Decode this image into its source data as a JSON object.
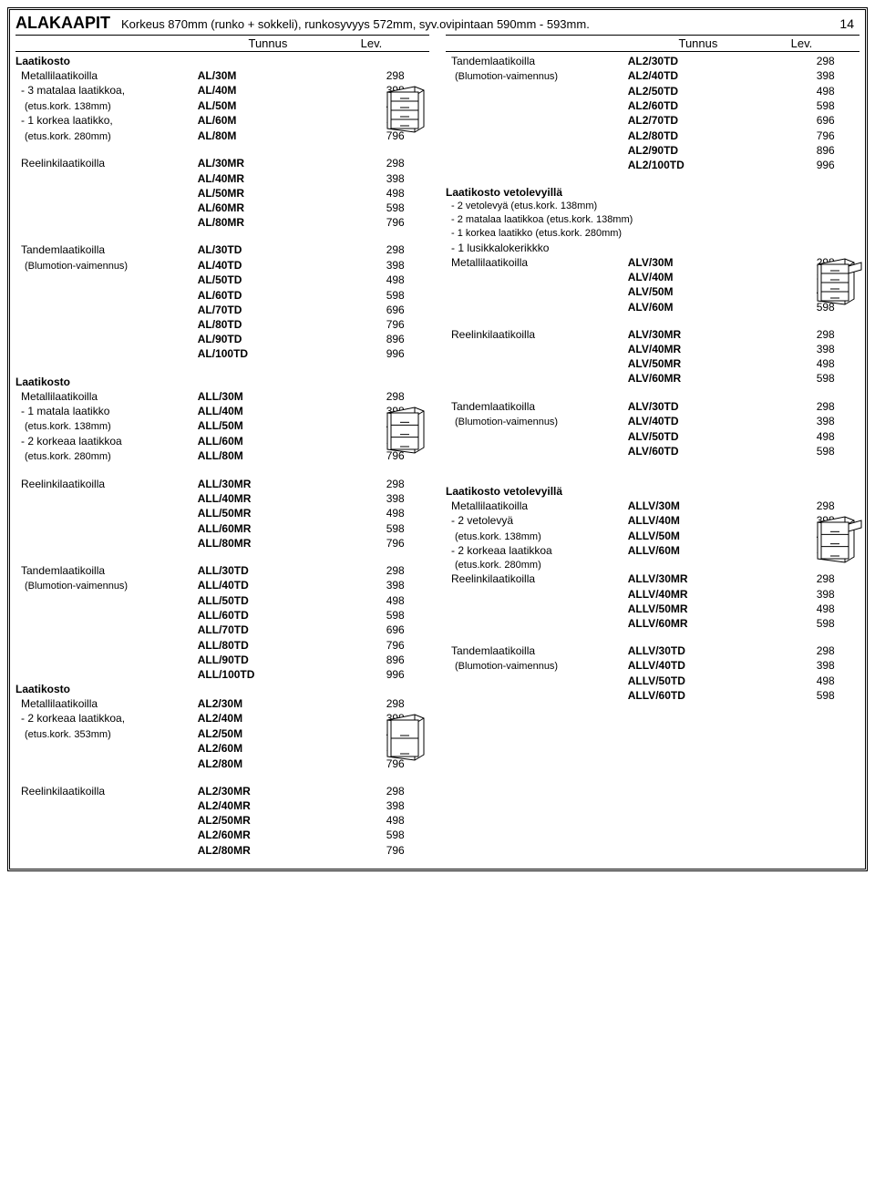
{
  "header": {
    "title": "ALAKAAPIT",
    "subtitle": "Korkeus 870mm (runko + sokkeli), runkosyvyys 572mm, syv.ovipintaan 590mm - 593mm.",
    "page": "14",
    "col_tunnus": "Tunnus",
    "col_lev": "Lev."
  },
  "left_rows": [
    {
      "d": "Laatikosto",
      "c": "",
      "v": "",
      "b": true
    },
    {
      "d": " Metallilaatikoilla",
      "c": "AL/30M",
      "v": "298",
      "i": 1
    },
    {
      "d": " - 3 matalaa laatikkoa,",
      "c": "AL/40M",
      "v": "398",
      "i": 1
    },
    {
      "d": "  (etus.kork. 138mm)",
      "c": "AL/50M",
      "v": "498",
      "i": 2,
      "s": true
    },
    {
      "d": " - 1 korkea laatikko,",
      "c": "AL/60M",
      "v": "598",
      "i": 1
    },
    {
      "d": "  (etus.kork. 280mm)",
      "c": "AL/80M",
      "v": "796",
      "i": 2,
      "s": true
    },
    {
      "d": "",
      "c": "",
      "v": ""
    },
    {
      "d": " Reelinkilaatikoilla",
      "c": "AL/30MR",
      "v": "298",
      "i": 1
    },
    {
      "d": "",
      "c": "AL/40MR",
      "v": "398"
    },
    {
      "d": "",
      "c": "AL/50MR",
      "v": "498"
    },
    {
      "d": "",
      "c": "AL/60MR",
      "v": "598"
    },
    {
      "d": "",
      "c": "AL/80MR",
      "v": "796"
    },
    {
      "d": "",
      "c": "",
      "v": ""
    },
    {
      "d": " Tandemlaatikoilla",
      "c": "AL/30TD",
      "v": "298",
      "i": 1
    },
    {
      "d": "  (Blumotion-vaimennus)",
      "c": "AL/40TD",
      "v": "398",
      "i": 2,
      "s": true
    },
    {
      "d": "",
      "c": "AL/50TD",
      "v": "498"
    },
    {
      "d": "",
      "c": "AL/60TD",
      "v": "598"
    },
    {
      "d": "",
      "c": "AL/70TD",
      "v": "696"
    },
    {
      "d": "",
      "c": "AL/80TD",
      "v": "796"
    },
    {
      "d": "",
      "c": "AL/90TD",
      "v": "896"
    },
    {
      "d": "",
      "c": "AL/100TD",
      "v": "996"
    },
    {
      "d": "",
      "c": "",
      "v": ""
    },
    {
      "d": "Laatikosto",
      "c": "",
      "v": "",
      "b": true
    },
    {
      "d": " Metallilaatikoilla",
      "c": "ALL/30M",
      "v": "298",
      "i": 1
    },
    {
      "d": " - 1 matala laatikko",
      "c": "ALL/40M",
      "v": "398",
      "i": 1
    },
    {
      "d": "  (etus.kork. 138mm)",
      "c": "ALL/50M",
      "v": "498",
      "i": 2,
      "s": true
    },
    {
      "d": " - 2 korkeaa laatikkoa",
      "c": "ALL/60M",
      "v": "598",
      "i": 1
    },
    {
      "d": "  (etus.kork. 280mm)",
      "c": "ALL/80M",
      "v": "796",
      "i": 2,
      "s": true
    },
    {
      "d": "",
      "c": "",
      "v": ""
    },
    {
      "d": " Reelinkilaatikoilla",
      "c": "ALL/30MR",
      "v": "298",
      "i": 1
    },
    {
      "d": "",
      "c": "ALL/40MR",
      "v": "398"
    },
    {
      "d": "",
      "c": "ALL/50MR",
      "v": "498"
    },
    {
      "d": "",
      "c": "ALL/60MR",
      "v": "598"
    },
    {
      "d": "",
      "c": "ALL/80MR",
      "v": "796"
    },
    {
      "d": "",
      "c": "",
      "v": ""
    },
    {
      "d": " Tandemlaatikoilla",
      "c": "ALL/30TD",
      "v": "298",
      "i": 1
    },
    {
      "d": "  (Blumotion-vaimennus)",
      "c": "ALL/40TD",
      "v": "398",
      "i": 2,
      "s": true
    },
    {
      "d": "",
      "c": "ALL/50TD",
      "v": "498"
    },
    {
      "d": "",
      "c": "ALL/60TD",
      "v": "598"
    },
    {
      "d": "",
      "c": "ALL/70TD",
      "v": "696"
    },
    {
      "d": "",
      "c": "ALL/80TD",
      "v": "796"
    },
    {
      "d": "",
      "c": "ALL/90TD",
      "v": "896"
    },
    {
      "d": "",
      "c": "ALL/100TD",
      "v": "996"
    },
    {
      "d": "Laatikosto",
      "c": "",
      "v": "",
      "b": true
    },
    {
      "d": " Metallilaatikoilla",
      "c": "AL2/30M",
      "v": "298",
      "i": 1
    },
    {
      "d": " - 2 korkeaa laatikkoa,",
      "c": "AL2/40M",
      "v": "398",
      "i": 1
    },
    {
      "d": "  (etus.kork. 353mm)",
      "c": "AL2/50M",
      "v": "498",
      "i": 2,
      "s": true
    },
    {
      "d": "",
      "c": "AL2/60M",
      "v": "598"
    },
    {
      "d": "",
      "c": "AL2/80M",
      "v": "796"
    },
    {
      "d": "",
      "c": "",
      "v": ""
    },
    {
      "d": " Reelinkilaatikoilla",
      "c": "AL2/30MR",
      "v": "298",
      "i": 1
    },
    {
      "d": "",
      "c": "AL2/40MR",
      "v": "398"
    },
    {
      "d": "",
      "c": "AL2/50MR",
      "v": "498"
    },
    {
      "d": "",
      "c": "AL2/60MR",
      "v": "598"
    },
    {
      "d": "",
      "c": "AL2/80MR",
      "v": "796"
    }
  ],
  "right_rows": [
    {
      "d": " Tandemlaatikoilla",
      "c": "AL2/30TD",
      "v": "298",
      "i": 1
    },
    {
      "d": "  (Blumotion-vaimennus)",
      "c": "AL2/40TD",
      "v": "398",
      "i": 2,
      "s": true
    },
    {
      "d": "",
      "c": "AL2/50TD",
      "v": "498"
    },
    {
      "d": "",
      "c": "AL2/60TD",
      "v": "598"
    },
    {
      "d": "",
      "c": "AL2/70TD",
      "v": "696"
    },
    {
      "d": "",
      "c": "AL2/80TD",
      "v": "796"
    },
    {
      "d": "",
      "c": "AL2/90TD",
      "v": "896"
    },
    {
      "d": "",
      "c": "AL2/100TD",
      "v": "996"
    },
    {
      "d": "",
      "c": "",
      "v": ""
    },
    {
      "d": "Laatikosto vetolevyillä",
      "c": "",
      "v": "",
      "b": true
    },
    {
      "d": " - 2 vetolevyä (etus.kork. 138mm)",
      "c": "",
      "v": "",
      "i": 1,
      "s": true
    },
    {
      "d": " - 2 matalaa laatikkoa (etus.kork. 138mm)",
      "c": "",
      "v": "",
      "i": 1,
      "s": true
    },
    {
      "d": " - 1 korkea laatikko (etus.kork. 280mm)",
      "c": "",
      "v": "",
      "i": 1,
      "s": true
    },
    {
      "d": " - 1 lusikkalokerikkko",
      "c": "",
      "v": "",
      "i": 1
    },
    {
      "d": " Metallilaatikoilla",
      "c": "ALV/30M",
      "v": "298",
      "i": 1
    },
    {
      "d": "",
      "c": "ALV/40M",
      "v": "398"
    },
    {
      "d": "",
      "c": "ALV/50M",
      "v": "498"
    },
    {
      "d": "",
      "c": "ALV/60M",
      "v": "598"
    },
    {
      "d": "",
      "c": "",
      "v": ""
    },
    {
      "d": " Reelinkilaatikoilla",
      "c": "ALV/30MR",
      "v": "298",
      "i": 1
    },
    {
      "d": "",
      "c": "ALV/40MR",
      "v": "398"
    },
    {
      "d": "",
      "c": "ALV/50MR",
      "v": "498"
    },
    {
      "d": "",
      "c": "ALV/60MR",
      "v": "598"
    },
    {
      "d": "",
      "c": "",
      "v": ""
    },
    {
      "d": " Tandemlaatikoilla",
      "c": "ALV/30TD",
      "v": "298",
      "i": 1
    },
    {
      "d": "  (Blumotion-vaimennus)",
      "c": "ALV/40TD",
      "v": "398",
      "i": 2,
      "s": true
    },
    {
      "d": "",
      "c": "ALV/50TD",
      "v": "498"
    },
    {
      "d": "",
      "c": "ALV/60TD",
      "v": "598"
    },
    {
      "d": "",
      "c": "",
      "v": ""
    },
    {
      "d": "",
      "c": "",
      "v": ""
    },
    {
      "d": "Laatikosto vetolevyillä",
      "c": "",
      "v": "",
      "b": true
    },
    {
      "d": " Metallilaatikoilla",
      "c": "ALLV/30M",
      "v": "298",
      "i": 1
    },
    {
      "d": " - 2 vetolevyä",
      "c": "ALLV/40M",
      "v": "398",
      "i": 1
    },
    {
      "d": "  (etus.kork. 138mm)",
      "c": "ALLV/50M",
      "v": "498",
      "i": 2,
      "s": true
    },
    {
      "d": " - 2 korkeaa laatikkoa",
      "c": "ALLV/60M",
      "v": "598",
      "i": 1
    },
    {
      "d": "  (etus.kork. 280mm)",
      "c": "",
      "v": "",
      "i": 2,
      "s": true
    },
    {
      "d": " Reelinkilaatikoilla",
      "c": "ALLV/30MR",
      "v": "298",
      "i": 1
    },
    {
      "d": "",
      "c": "ALLV/40MR",
      "v": "398"
    },
    {
      "d": "",
      "c": "ALLV/50MR",
      "v": "498"
    },
    {
      "d": "",
      "c": "ALLV/60MR",
      "v": "598"
    },
    {
      "d": "",
      "c": "",
      "v": ""
    },
    {
      "d": " Tandemlaatikoilla",
      "c": "ALLV/30TD",
      "v": "298",
      "i": 1
    },
    {
      "d": "  (Blumotion-vaimennus)",
      "c": "ALLV/40TD",
      "v": "398",
      "i": 2,
      "s": true
    },
    {
      "d": "",
      "c": "ALLV/50TD",
      "v": "498"
    },
    {
      "d": "",
      "c": "ALLV/60TD",
      "v": "598"
    }
  ],
  "left_icons": [
    {
      "at": 2,
      "drawers": 4
    },
    {
      "at": 24,
      "drawers": 3
    },
    {
      "at": 45,
      "drawers": 2
    }
  ],
  "right_icons": [
    {
      "at": 14,
      "drawers": 4,
      "open": true
    },
    {
      "at": 32,
      "drawers": 3,
      "open": true
    }
  ],
  "styling": {
    "font": "Arial",
    "text_color": "#000000",
    "background": "#ffffff",
    "border": "#000000"
  }
}
